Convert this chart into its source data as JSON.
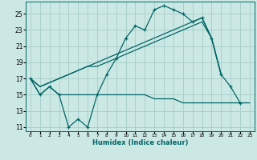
{
  "xlabel": "Humidex (Indice chaleur)",
  "background_color": "#cce8e4",
  "grid_color": "#aad0cc",
  "line_color": "#006666",
  "xlim": [
    -0.5,
    23.5
  ],
  "ylim": [
    10.5,
    26.5
  ],
  "xticks": [
    0,
    1,
    2,
    3,
    4,
    5,
    6,
    7,
    8,
    9,
    10,
    11,
    12,
    13,
    14,
    15,
    16,
    17,
    18,
    19,
    20,
    21,
    22,
    23
  ],
  "yticks": [
    11,
    13,
    15,
    17,
    19,
    21,
    23,
    25
  ],
  "x_jagged": [
    0,
    1,
    2,
    3,
    4,
    5,
    6,
    7,
    8,
    9,
    10,
    11,
    12,
    13,
    14,
    15,
    16,
    17,
    18,
    19,
    20,
    21,
    22
  ],
  "y_jagged": [
    17,
    15,
    16,
    15,
    11,
    12,
    11,
    15,
    17.5,
    19.5,
    22,
    23.5,
    23,
    25.5,
    26,
    25.5,
    25,
    24,
    24.5,
    22,
    17.5,
    16,
    14
  ],
  "x_flat": [
    0,
    1,
    2,
    3,
    4,
    5,
    6,
    7,
    8,
    9,
    10,
    11,
    12,
    13,
    14,
    15,
    16,
    17,
    18,
    19,
    20,
    21,
    22,
    23
  ],
  "y_flat": [
    17,
    15,
    16,
    15,
    15,
    15,
    15,
    15,
    15,
    15,
    15,
    15,
    15,
    14.5,
    14.5,
    14.5,
    14,
    14,
    14,
    14,
    14,
    14,
    14,
    14
  ],
  "x_trend1": [
    0,
    1,
    2,
    3,
    4,
    5,
    6,
    7,
    8,
    9,
    10,
    11,
    12,
    13,
    14,
    15,
    16,
    17,
    18,
    19,
    20
  ],
  "y_trend1": [
    17,
    16,
    16.5,
    17,
    17.5,
    18,
    18.5,
    18.5,
    19,
    19.5,
    20,
    20.5,
    21,
    21.5,
    22,
    22.5,
    23,
    23.5,
    24,
    22,
    17.5
  ],
  "x_trend2": [
    0,
    1,
    2,
    3,
    4,
    5,
    6,
    7,
    8,
    9,
    10,
    11,
    12,
    13,
    14,
    15,
    16,
    17,
    18,
    19,
    20
  ],
  "y_trend2": [
    17,
    16,
    16.5,
    17,
    17.5,
    18,
    18.5,
    19,
    19.5,
    20,
    20.5,
    21,
    21.5,
    22,
    22.5,
    23,
    23.5,
    24,
    24.5,
    22,
    17.5
  ]
}
